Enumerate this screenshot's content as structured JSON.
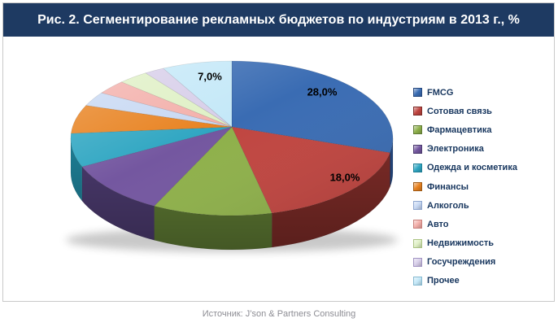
{
  "header": {
    "title": "Рис. 2. Сегментирование рекламных бюджетов по индустриям в 2013 г., %",
    "background": "#1e3a62",
    "text_color": "#ffffff"
  },
  "footer": {
    "source": "Источник: J’son & Partners Consulting",
    "text_color": "#8d8d94"
  },
  "legend": {
    "position": "right",
    "text_color": "#17365e"
  },
  "chart_data": {
    "type": "pie",
    "style": "3d",
    "title": "Рис. 2. Сегментирование рекламных бюджетов по индустриям в 2013 г., %",
    "unit": "%",
    "decimal_separator": ",",
    "start_angle_deg": 0,
    "direction": "clockwise",
    "legend_position": "right",
    "visible_data_labels": [
      "28,0%",
      "18,0%",
      "7,0%"
    ],
    "slices": [
      {
        "name": "FMCG",
        "value": 28,
        "label": "28,0%",
        "color": "#3a6cb3",
        "dark": "#24477d"
      },
      {
        "name": "Сотовая связь",
        "value": 18,
        "label": "18,0%",
        "color": "#c04540",
        "dark": "#7c2b27"
      },
      {
        "name": "Фармацевтика",
        "value": 12,
        "label": null,
        "color": "#8eb04a",
        "dark": "#5e7a33"
      },
      {
        "name": "Электроника",
        "value": 11,
        "label": null,
        "color": "#7457a0",
        "dark": "#4b3a6e"
      },
      {
        "name": "Одежда и косметика",
        "value": 7,
        "label": null,
        "color": "#2fa6c2",
        "dark": "#1e7e95"
      },
      {
        "name": "Финансы",
        "value": 6,
        "label": null,
        "color": "#e88220",
        "dark": "#9e5812"
      },
      {
        "name": "Алкоголь",
        "value": 3,
        "label": null,
        "color": "#c7d8f3",
        "dark": "#8ea6cf"
      },
      {
        "name": "Авто",
        "value": 3,
        "label": null,
        "color": "#f3afaa",
        "dark": "#c87f7b"
      },
      {
        "name": "Недвижимость",
        "value": 3,
        "label": null,
        "color": "#dff0c5",
        "dark": "#abc383"
      },
      {
        "name": "Госучреждения",
        "value": 2,
        "label": null,
        "color": "#d7cee9",
        "dark": "#a193c2"
      },
      {
        "name": "Прочее",
        "value": 7,
        "label": "7,0%",
        "color": "#c4e8f8",
        "dark": "#85b9d0"
      }
    ]
  }
}
